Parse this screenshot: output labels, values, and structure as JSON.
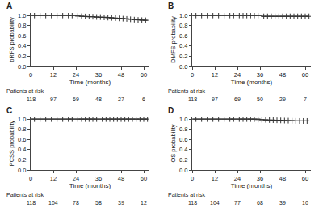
{
  "chart_data": [
    {
      "type": "line",
      "title": "A",
      "xlabel": "Time (months)",
      "ylabel": "bRFS probability",
      "series": [
        {
          "type": "line",
          "line_style": "step",
          "color": "#333333",
          "x": [
            0,
            1,
            2,
            3,
            4,
            5,
            6,
            7,
            8,
            9,
            10,
            11,
            12,
            13,
            14,
            15,
            16,
            17,
            18,
            19,
            20,
            21,
            22,
            23,
            24,
            25,
            26,
            27,
            28,
            29,
            30,
            32,
            34,
            36,
            38,
            40,
            42,
            44,
            46,
            48,
            50,
            52,
            54,
            56,
            58,
            60,
            62
          ],
          "values": [
            1.0,
            1.0,
            1.0,
            1.0,
            1.0,
            1.0,
            1.0,
            1.0,
            1.0,
            1.0,
            1.0,
            1.0,
            1.0,
            1.0,
            1.0,
            1.0,
            1.0,
            1.0,
            1.0,
            1.0,
            1.0,
            1.0,
            1.0,
            1.0,
            0.99,
            0.99,
            0.985,
            0.985,
            0.98,
            0.98,
            0.975,
            0.975,
            0.97,
            0.965,
            0.965,
            0.96,
            0.955,
            0.95,
            0.945,
            0.94,
            0.935,
            0.93,
            0.92,
            0.915,
            0.91,
            0.905,
            0.905
          ]
        },
        {
          "type": "scatter",
          "marker": "+",
          "color": "#333333",
          "x": [
            2,
            5,
            8,
            11,
            14,
            17,
            20,
            22,
            25,
            27,
            29,
            31,
            33,
            35,
            37,
            39,
            41,
            43,
            45,
            47,
            49,
            51,
            53,
            55,
            57,
            59,
            61
          ],
          "values": [
            1.0,
            1.0,
            1.0,
            1.0,
            1.0,
            1.0,
            1.0,
            1.0,
            0.99,
            0.985,
            0.98,
            0.978,
            0.975,
            0.97,
            0.968,
            0.963,
            0.958,
            0.952,
            0.947,
            0.943,
            0.937,
            0.932,
            0.925,
            0.918,
            0.912,
            0.908,
            0.905
          ]
        }
      ],
      "xlim": [
        0,
        63
      ],
      "ylim": [
        0.0,
        1.05
      ],
      "xticks": [
        0,
        12,
        24,
        36,
        48,
        60
      ],
      "yticks": [
        {
          "value": 0.0,
          "label": "0.0"
        },
        0.2,
        0.4,
        0.6,
        0.8,
        {
          "value": 1.0,
          "label": "1.0"
        }
      ],
      "grid": false,
      "at_risk": {
        "label": "Patients at risk",
        "x": [
          0,
          12,
          24,
          36,
          48,
          60
        ],
        "values": [
          118,
          97,
          69,
          48,
          27,
          6
        ]
      }
    },
    {
      "type": "line",
      "title": "B",
      "xlabel": "Time (months)",
      "ylabel": "DMFS probability",
      "series": [
        {
          "type": "line",
          "line_style": "step",
          "color": "#333333",
          "x": [
            0,
            1,
            2,
            3,
            4,
            5,
            6,
            7,
            8,
            9,
            10,
            11,
            12,
            13,
            14,
            15,
            16,
            17,
            18,
            19,
            20,
            21,
            22,
            23,
            24,
            25,
            26,
            27,
            28,
            29,
            30,
            32,
            34,
            36,
            37,
            38,
            40,
            42,
            44,
            46,
            48,
            50,
            52,
            54,
            56,
            58,
            60,
            62
          ],
          "values": [
            1.0,
            1.0,
            1.0,
            1.0,
            1.0,
            1.0,
            1.0,
            1.0,
            1.0,
            1.0,
            1.0,
            1.0,
            1.0,
            1.0,
            1.0,
            1.0,
            1.0,
            1.0,
            1.0,
            1.0,
            1.0,
            1.0,
            1.0,
            1.0,
            1.0,
            1.0,
            1.0,
            1.0,
            1.0,
            1.0,
            1.0,
            1.0,
            1.0,
            1.0,
            0.983,
            0.983,
            0.983,
            0.983,
            0.983,
            0.983,
            0.983,
            0.983,
            0.983,
            0.983,
            0.983,
            0.983,
            0.983,
            0.983
          ]
        },
        {
          "type": "scatter",
          "marker": "+",
          "color": "#333333",
          "x": [
            2,
            5,
            8,
            11,
            14,
            17,
            20,
            22,
            25,
            27,
            29,
            31,
            33,
            35,
            38,
            40,
            42,
            44,
            46,
            48,
            50,
            52,
            54,
            56,
            58,
            60,
            62
          ],
          "values": [
            1.0,
            1.0,
            1.0,
            1.0,
            1.0,
            1.0,
            1.0,
            1.0,
            1.0,
            1.0,
            1.0,
            1.0,
            1.0,
            1.0,
            0.983,
            0.983,
            0.983,
            0.983,
            0.983,
            0.983,
            0.983,
            0.983,
            0.983,
            0.983,
            0.983,
            0.983,
            0.983
          ]
        }
      ],
      "xlim": [
        0,
        63
      ],
      "ylim": [
        0.0,
        1.05
      ],
      "xticks": [
        0,
        12,
        24,
        36,
        48,
        60
      ],
      "yticks": [
        {
          "value": 0.0,
          "label": "0.0"
        },
        0.2,
        0.4,
        0.6,
        0.8,
        {
          "value": 1.0,
          "label": "1.0"
        }
      ],
      "grid": false,
      "at_risk": {
        "label": "Patients at risk",
        "x": [
          0,
          12,
          24,
          36,
          48,
          60
        ],
        "values": [
          118,
          97,
          69,
          50,
          29,
          7
        ]
      }
    },
    {
      "type": "line",
      "title": "C",
      "xlabel": "Time (months)",
      "ylabel": "PCSS probability",
      "series": [
        {
          "type": "line",
          "line_style": "step",
          "color": "#333333",
          "x": [
            0,
            5,
            10,
            15,
            20,
            25,
            30,
            35,
            40,
            45,
            50,
            55,
            60,
            62
          ],
          "values": [
            1.0,
            1.0,
            1.0,
            1.0,
            1.0,
            1.0,
            1.0,
            1.0,
            1.0,
            1.0,
            1.0,
            1.0,
            1.0,
            1.0
          ]
        },
        {
          "type": "scatter",
          "marker": "+",
          "color": "#333333",
          "x": [
            2,
            5,
            8,
            11,
            14,
            17,
            20,
            22,
            25,
            27,
            29,
            31,
            33,
            35,
            38,
            40,
            42,
            44,
            46,
            48,
            50,
            52,
            54,
            56,
            58,
            60,
            62
          ],
          "values": [
            1.0,
            1.0,
            1.0,
            1.0,
            1.0,
            1.0,
            1.0,
            1.0,
            1.0,
            1.0,
            1.0,
            1.0,
            1.0,
            1.0,
            1.0,
            1.0,
            1.0,
            1.0,
            1.0,
            1.0,
            1.0,
            1.0,
            1.0,
            1.0,
            1.0,
            1.0,
            1.0
          ]
        }
      ],
      "xlim": [
        0,
        63
      ],
      "ylim": [
        0.0,
        1.05
      ],
      "xticks": [
        0,
        12,
        24,
        36,
        48,
        60
      ],
      "yticks": [
        {
          "value": 0.0,
          "label": "0.0"
        },
        0.2,
        0.4,
        0.6,
        0.8,
        {
          "value": 1.0,
          "label": "1.0"
        }
      ],
      "grid": false,
      "at_risk": {
        "label": "Patients at risk",
        "x": [
          0,
          12,
          24,
          36,
          48,
          60
        ],
        "values": [
          118,
          104,
          78,
          58,
          39,
          12
        ]
      }
    },
    {
      "type": "line",
      "title": "D",
      "xlabel": "Time (months)",
      "ylabel": "OS probability",
      "series": [
        {
          "type": "line",
          "line_style": "step",
          "color": "#333333",
          "x": [
            0,
            1,
            2,
            3,
            4,
            5,
            6,
            7,
            8,
            9,
            10,
            11,
            12,
            14,
            16,
            18,
            20,
            22,
            24,
            26,
            28,
            30,
            32,
            34,
            36,
            38,
            40,
            42,
            44,
            46,
            48,
            50,
            52,
            54,
            56,
            58,
            60,
            62
          ],
          "values": [
            1.0,
            1.0,
            1.0,
            1.0,
            1.0,
            1.0,
            1.0,
            1.0,
            1.0,
            1.0,
            1.0,
            1.0,
            1.0,
            1.0,
            1.0,
            1.0,
            1.0,
            1.0,
            1.0,
            1.0,
            1.0,
            1.0,
            1.0,
            1.0,
            0.99,
            0.985,
            0.982,
            0.979,
            0.977,
            0.975,
            0.972,
            0.97,
            0.968,
            0.965,
            0.963,
            0.963,
            0.963,
            0.963
          ]
        },
        {
          "type": "scatter",
          "marker": "+",
          "color": "#333333",
          "x": [
            2,
            5,
            8,
            11,
            14,
            17,
            20,
            22,
            25,
            27,
            29,
            31,
            33,
            35,
            37,
            39,
            41,
            43,
            45,
            47,
            49,
            51,
            53,
            55,
            57,
            59,
            61
          ],
          "values": [
            1.0,
            1.0,
            1.0,
            1.0,
            1.0,
            1.0,
            1.0,
            1.0,
            1.0,
            1.0,
            1.0,
            1.0,
            1.0,
            0.99,
            0.987,
            0.984,
            0.981,
            0.978,
            0.976,
            0.974,
            0.971,
            0.969,
            0.967,
            0.964,
            0.963,
            0.963,
            0.963
          ]
        }
      ],
      "xlim": [
        0,
        63
      ],
      "ylim": [
        0.0,
        1.05
      ],
      "xticks": [
        0,
        12,
        24,
        36,
        48,
        60
      ],
      "yticks": [
        {
          "value": 0.0,
          "label": "0.0"
        },
        0.2,
        0.4,
        0.6,
        0.8,
        {
          "value": 1.0,
          "label": "1.0"
        }
      ],
      "grid": false,
      "at_risk": {
        "label": "Patients at risk",
        "x": [
          0,
          12,
          24,
          36,
          48,
          60
        ],
        "values": [
          118,
          104,
          77,
          68,
          39,
          10
        ]
      }
    }
  ]
}
